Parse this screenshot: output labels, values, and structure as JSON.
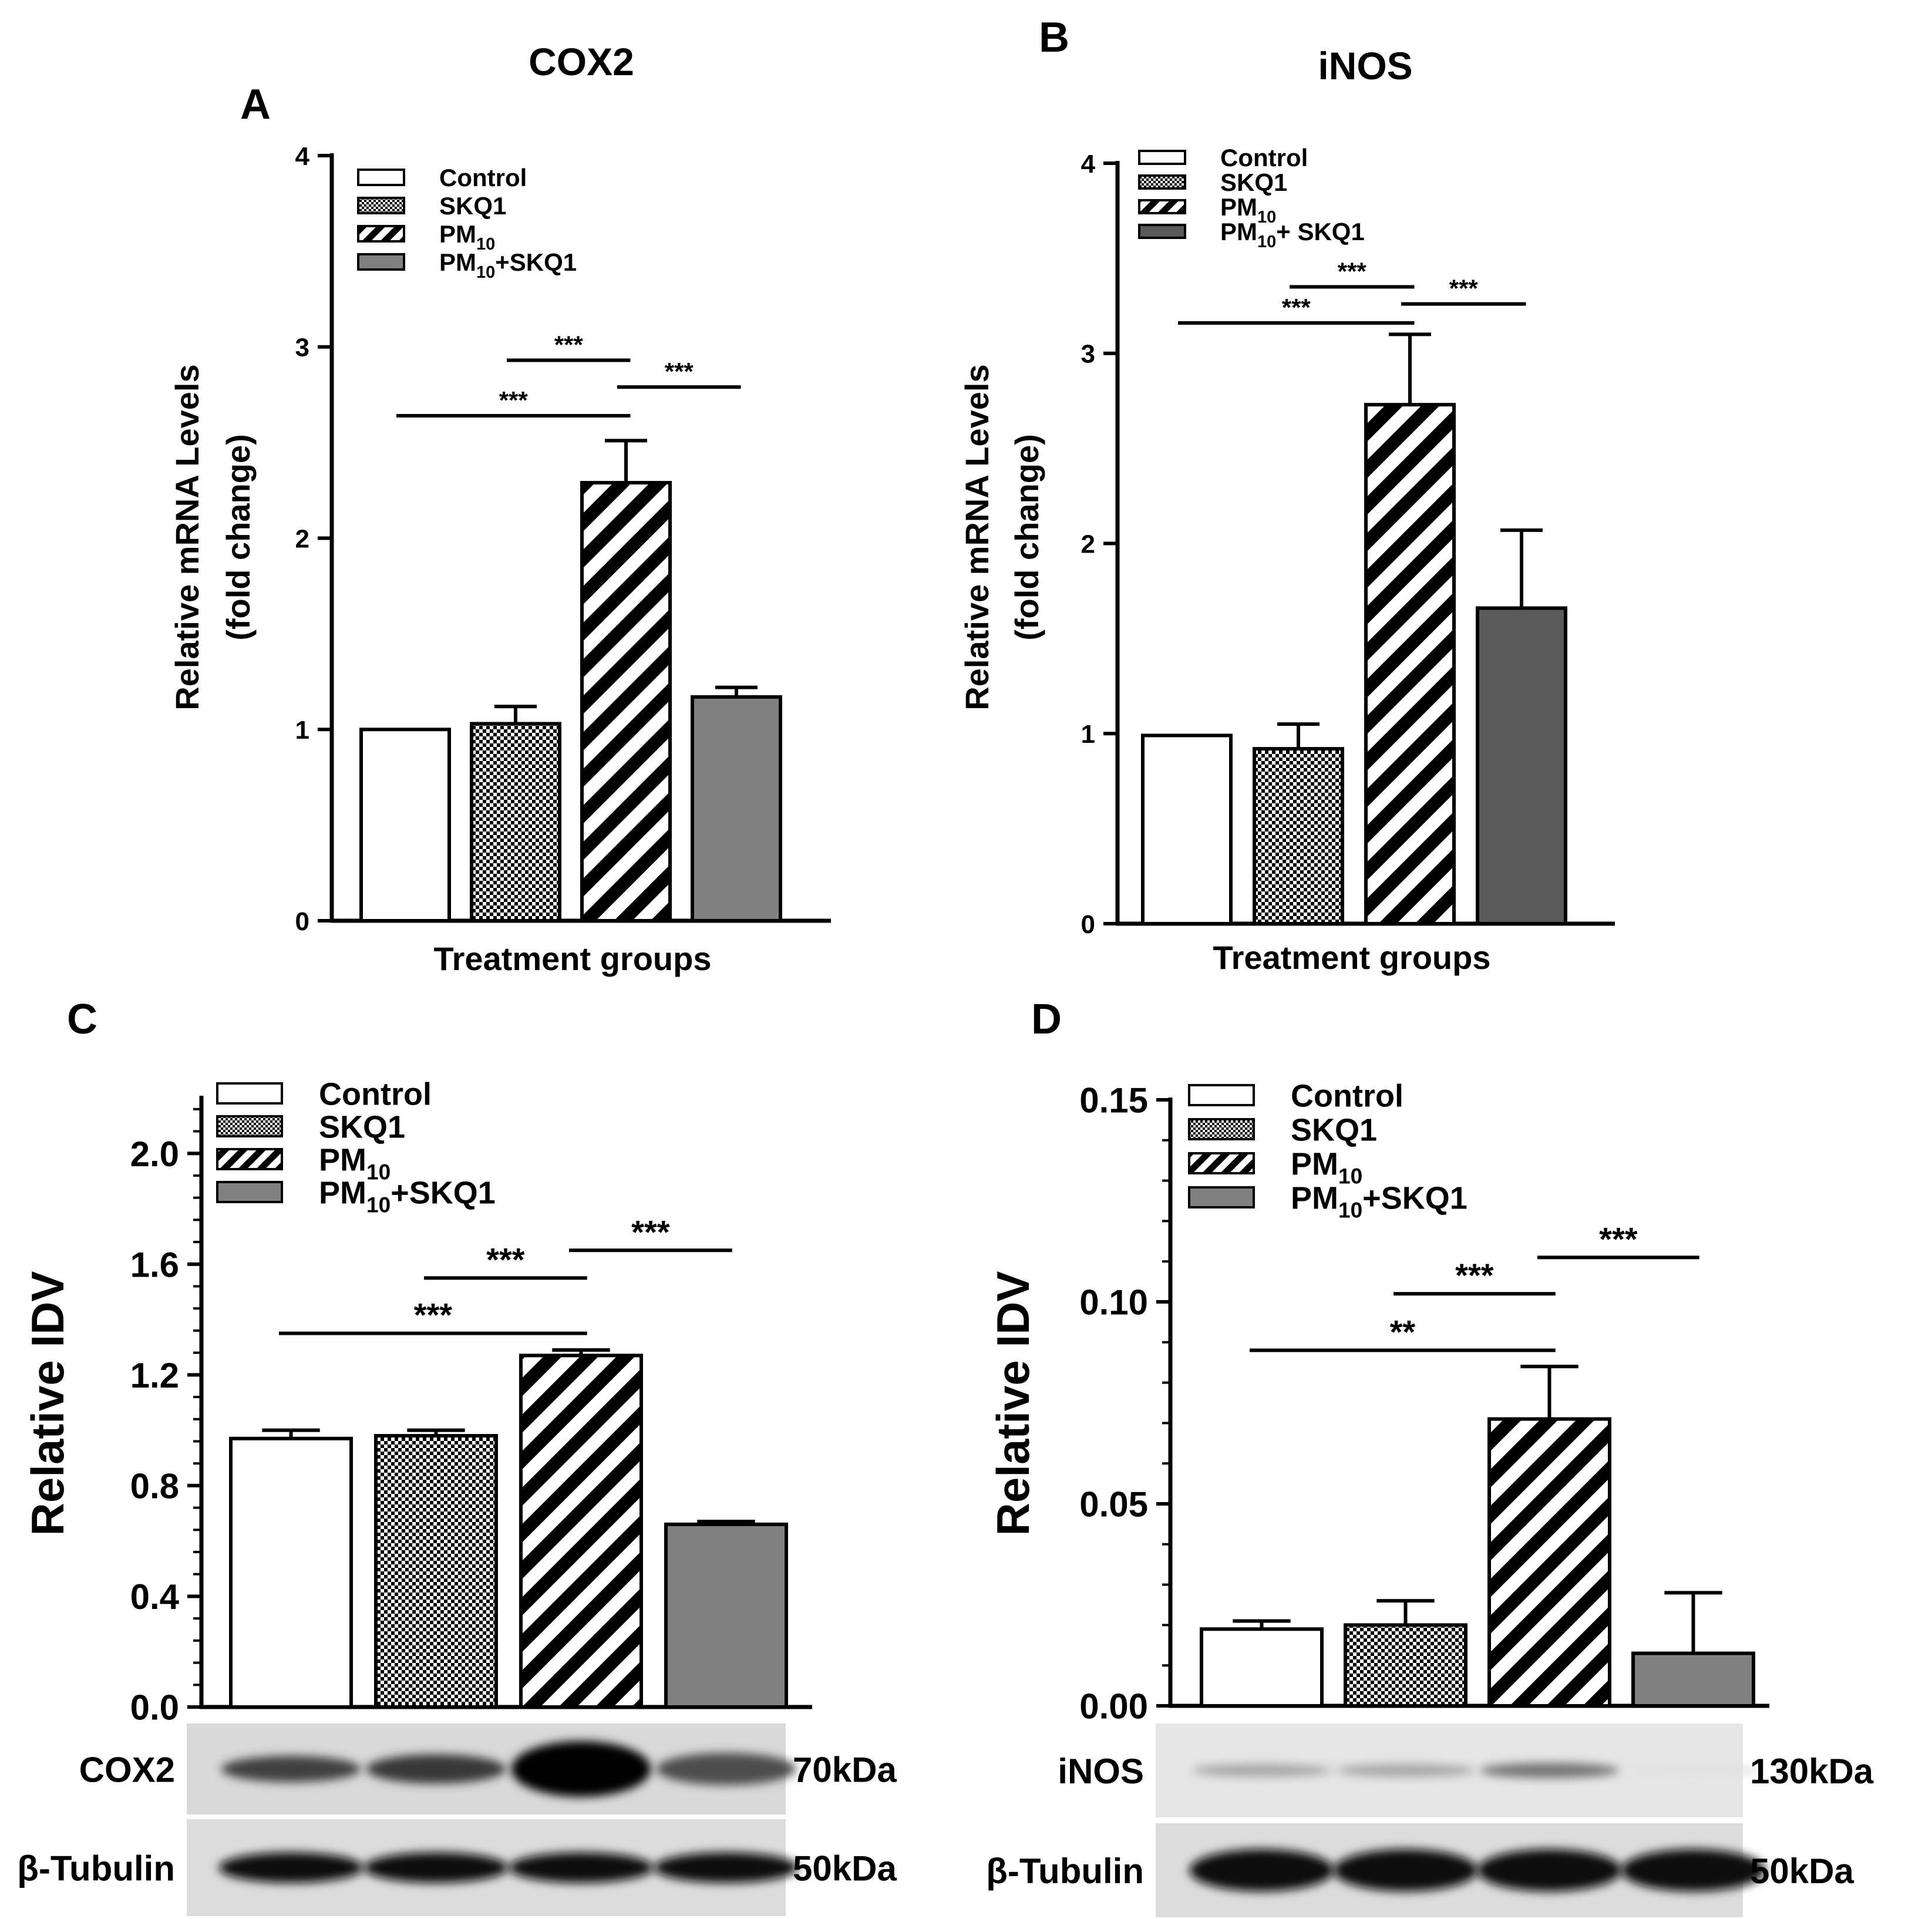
{
  "chart_data": [
    {
      "panel_letter": "A",
      "type": "bar",
      "title": "COX2",
      "xlabel": "Treatment groups",
      "ylabel_line1": "Relative mRNA Levels",
      "ylabel_line2": "(fold change)",
      "ylim": [
        0,
        4
      ],
      "yticks": [
        "0",
        "1",
        "2",
        "3",
        "4"
      ],
      "legend": [
        "Control",
        "SKQ1",
        "PM10",
        "PM10+SKQ1"
      ],
      "values": [
        1.0,
        1.03,
        2.29,
        1.17
      ],
      "errors": [
        0.0,
        0.09,
        0.22,
        0.05
      ],
      "significance": [
        {
          "from": 0,
          "to": 2,
          "label": "***",
          "y": 2.64
        },
        {
          "from": 1,
          "to": 2,
          "label": "***",
          "y": 2.93
        },
        {
          "from": 2,
          "to": 3,
          "label": "***",
          "y": 2.79
        }
      ]
    },
    {
      "panel_letter": "B",
      "type": "bar",
      "title": "iNOS",
      "xlabel": "Treatment groups",
      "ylabel_line1": "Relative mRNA Levels",
      "ylabel_line2": "(fold change)",
      "ylim": [
        0,
        4
      ],
      "yticks": [
        "0",
        "1",
        "2",
        "3",
        "4"
      ],
      "legend": [
        "Control",
        "SKQ1",
        "PM10",
        "PM10+ SKQ1"
      ],
      "values": [
        0.99,
        0.92,
        2.73,
        1.66
      ],
      "errors": [
        0.0,
        0.13,
        0.37,
        0.41
      ],
      "significance": [
        {
          "from": 0,
          "to": 2,
          "label": "***",
          "y": 3.16
        },
        {
          "from": 1,
          "to": 2,
          "label": "***",
          "y": 3.35
        },
        {
          "from": 2,
          "to": 3,
          "label": "***",
          "y": 3.26
        }
      ]
    },
    {
      "panel_letter": "C",
      "type": "bar",
      "title": "",
      "xlabel": "",
      "ylabel": "Relative IDV",
      "ylim": [
        0,
        2.2
      ],
      "yticks": [
        "0.0",
        "0.4",
        "0.8",
        "1.2",
        "1.6",
        "2.0"
      ],
      "legend": [
        "Control",
        "SKQ1",
        "PM10",
        "PM10+SKQ1"
      ],
      "values": [
        0.97,
        0.98,
        1.27,
        0.66
      ],
      "errors": [
        0.03,
        0.02,
        0.02,
        0.01
      ],
      "significance": [
        {
          "from": 0,
          "to": 2,
          "label": "***",
          "y": 1.35
        },
        {
          "from": 1,
          "to": 2,
          "label": "***",
          "y": 1.55
        },
        {
          "from": 2,
          "to": 3,
          "label": "***",
          "y": 1.65
        }
      ],
      "blot": {
        "target": "COX2",
        "target_size": "70kDa",
        "control": "β-Tubulin",
        "control_size": "50kDa"
      }
    },
    {
      "panel_letter": "D",
      "type": "bar",
      "title": "",
      "xlabel": "",
      "ylabel": "Relative IDV",
      "ylim": [
        0,
        0.15
      ],
      "yticks": [
        "0.00",
        "0.05",
        "0.10",
        "0.15"
      ],
      "legend": [
        "Control",
        "SKQ1",
        "PM10",
        "PM10+SKQ1"
      ],
      "values": [
        0.019,
        0.02,
        0.071,
        0.013
      ],
      "errors": [
        0.002,
        0.006,
        0.013,
        0.015
      ],
      "significance": [
        {
          "from": 0,
          "to": 2,
          "label": "**",
          "y": 0.088
        },
        {
          "from": 1,
          "to": 2,
          "label": "***",
          "y": 0.102
        },
        {
          "from": 2,
          "to": 3,
          "label": "***",
          "y": 0.111
        }
      ],
      "blot": {
        "target": "iNOS",
        "target_size": "130kDa",
        "control": "β-Tubulin",
        "control_size": "50kDa"
      }
    }
  ],
  "colors": {
    "control": "#ffffff",
    "skq1_pattern": "checkered",
    "pm10_pattern": "diagonal-stripes",
    "combo_A_C_D": "#808080",
    "combo_B": "#5a5a5a"
  }
}
